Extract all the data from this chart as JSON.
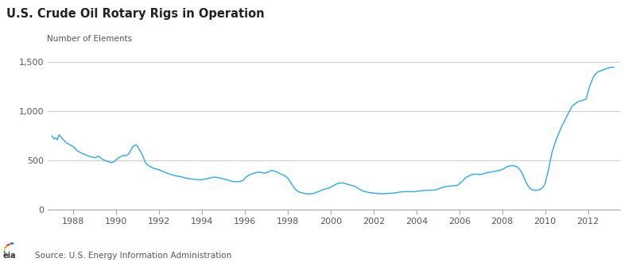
{
  "title": "U.S. Crude Oil Rotary Rigs in Operation",
  "ylabel": "Number of Elements",
  "source_text": "Source: U.S. Energy Information Administration",
  "legend_label": "U.S. Crude Oil Rotary Rigs in Operation",
  "line_color": "#29ABE2",
  "background_color": "#ffffff",
  "grid_color": "#cccccc",
  "ylim": [
    0,
    1600
  ],
  "yticks": [
    0,
    500,
    1000,
    1500
  ],
  "xlim_start": 1986.8,
  "xlim_end": 2013.5,
  "xticks": [
    1988,
    1990,
    1992,
    1994,
    1996,
    1998,
    2000,
    2002,
    2004,
    2006,
    2008,
    2010,
    2012
  ],
  "data": [
    [
      1987.0,
      750
    ],
    [
      1987.08,
      720
    ],
    [
      1987.17,
      730
    ],
    [
      1987.25,
      710
    ],
    [
      1987.33,
      760
    ],
    [
      1987.42,
      740
    ],
    [
      1987.5,
      720
    ],
    [
      1987.58,
      700
    ],
    [
      1987.67,
      680
    ],
    [
      1987.75,
      670
    ],
    [
      1987.83,
      660
    ],
    [
      1987.92,
      650
    ],
    [
      1988.0,
      640
    ],
    [
      1988.08,
      620
    ],
    [
      1988.17,
      600
    ],
    [
      1988.25,
      590
    ],
    [
      1988.33,
      580
    ],
    [
      1988.42,
      570
    ],
    [
      1988.5,
      565
    ],
    [
      1988.58,
      555
    ],
    [
      1988.67,
      548
    ],
    [
      1988.75,
      542
    ],
    [
      1988.83,
      538
    ],
    [
      1988.92,
      532
    ],
    [
      1989.0,
      528
    ],
    [
      1989.08,
      535
    ],
    [
      1989.17,
      545
    ],
    [
      1989.25,
      530
    ],
    [
      1989.33,
      515
    ],
    [
      1989.42,
      505
    ],
    [
      1989.5,
      498
    ],
    [
      1989.58,
      490
    ],
    [
      1989.67,
      485
    ],
    [
      1989.75,
      478
    ],
    [
      1989.83,
      482
    ],
    [
      1989.92,
      490
    ],
    [
      1990.0,
      510
    ],
    [
      1990.08,
      525
    ],
    [
      1990.17,
      535
    ],
    [
      1990.25,
      545
    ],
    [
      1990.33,
      552
    ],
    [
      1990.42,
      548
    ],
    [
      1990.5,
      555
    ],
    [
      1990.58,
      568
    ],
    [
      1990.67,
      600
    ],
    [
      1990.75,
      635
    ],
    [
      1990.83,
      650
    ],
    [
      1990.92,
      658
    ],
    [
      1991.0,
      640
    ],
    [
      1991.08,
      610
    ],
    [
      1991.17,
      575
    ],
    [
      1991.25,
      540
    ],
    [
      1991.33,
      490
    ],
    [
      1991.42,
      462
    ],
    [
      1991.5,
      448
    ],
    [
      1991.58,
      438
    ],
    [
      1991.67,
      428
    ],
    [
      1991.75,
      420
    ],
    [
      1991.83,
      415
    ],
    [
      1991.92,
      410
    ],
    [
      1992.0,
      405
    ],
    [
      1992.08,
      398
    ],
    [
      1992.17,
      390
    ],
    [
      1992.25,
      382
    ],
    [
      1992.33,
      375
    ],
    [
      1992.42,
      368
    ],
    [
      1992.5,
      360
    ],
    [
      1992.58,
      355
    ],
    [
      1992.67,
      350
    ],
    [
      1992.75,
      345
    ],
    [
      1992.83,
      342
    ],
    [
      1992.92,
      338
    ],
    [
      1993.0,
      335
    ],
    [
      1993.08,
      330
    ],
    [
      1993.17,
      325
    ],
    [
      1993.25,
      320
    ],
    [
      1993.33,
      318
    ],
    [
      1993.42,
      315
    ],
    [
      1993.5,
      312
    ],
    [
      1993.58,
      310
    ],
    [
      1993.67,
      308
    ],
    [
      1993.75,
      305
    ],
    [
      1993.83,
      305
    ],
    [
      1993.92,
      302
    ],
    [
      1994.0,
      305
    ],
    [
      1994.08,
      308
    ],
    [
      1994.17,
      312
    ],
    [
      1994.25,
      315
    ],
    [
      1994.33,
      320
    ],
    [
      1994.42,
      325
    ],
    [
      1994.5,
      328
    ],
    [
      1994.58,
      330
    ],
    [
      1994.67,
      328
    ],
    [
      1994.75,
      325
    ],
    [
      1994.83,
      320
    ],
    [
      1994.92,
      318
    ],
    [
      1995.0,
      312
    ],
    [
      1995.08,
      308
    ],
    [
      1995.17,
      302
    ],
    [
      1995.25,
      298
    ],
    [
      1995.33,
      292
    ],
    [
      1995.42,
      288
    ],
    [
      1995.5,
      285
    ],
    [
      1995.58,
      284
    ],
    [
      1995.67,
      284
    ],
    [
      1995.75,
      286
    ],
    [
      1995.83,
      290
    ],
    [
      1995.92,
      298
    ],
    [
      1996.0,
      318
    ],
    [
      1996.08,
      335
    ],
    [
      1996.17,
      348
    ],
    [
      1996.25,
      358
    ],
    [
      1996.33,
      365
    ],
    [
      1996.42,
      370
    ],
    [
      1996.5,
      375
    ],
    [
      1996.58,
      380
    ],
    [
      1996.67,
      382
    ],
    [
      1996.75,
      378
    ],
    [
      1996.83,
      374
    ],
    [
      1996.92,
      370
    ],
    [
      1997.0,
      375
    ],
    [
      1997.08,
      382
    ],
    [
      1997.17,
      392
    ],
    [
      1997.25,
      398
    ],
    [
      1997.33,
      395
    ],
    [
      1997.42,
      390
    ],
    [
      1997.5,
      382
    ],
    [
      1997.58,
      372
    ],
    [
      1997.67,
      362
    ],
    [
      1997.75,
      355
    ],
    [
      1997.83,
      348
    ],
    [
      1997.92,
      335
    ],
    [
      1998.0,
      318
    ],
    [
      1998.08,
      295
    ],
    [
      1998.17,
      265
    ],
    [
      1998.25,
      238
    ],
    [
      1998.33,
      212
    ],
    [
      1998.42,
      195
    ],
    [
      1998.5,
      182
    ],
    [
      1998.58,
      175
    ],
    [
      1998.67,
      170
    ],
    [
      1998.75,
      165
    ],
    [
      1998.83,
      162
    ],
    [
      1998.92,
      160
    ],
    [
      1999.0,
      158
    ],
    [
      1999.08,
      160
    ],
    [
      1999.17,
      163
    ],
    [
      1999.25,
      168
    ],
    [
      1999.33,
      175
    ],
    [
      1999.42,
      182
    ],
    [
      1999.5,
      190
    ],
    [
      1999.58,
      198
    ],
    [
      1999.67,
      205
    ],
    [
      1999.75,
      210
    ],
    [
      1999.83,
      214
    ],
    [
      1999.92,
      218
    ],
    [
      2000.0,
      228
    ],
    [
      2000.08,
      238
    ],
    [
      2000.17,
      248
    ],
    [
      2000.25,
      258
    ],
    [
      2000.33,
      265
    ],
    [
      2000.42,
      270
    ],
    [
      2000.5,
      272
    ],
    [
      2000.58,
      270
    ],
    [
      2000.67,
      265
    ],
    [
      2000.75,
      260
    ],
    [
      2000.83,
      255
    ],
    [
      2000.92,
      250
    ],
    [
      2001.0,
      245
    ],
    [
      2001.08,
      240
    ],
    [
      2001.17,
      232
    ],
    [
      2001.25,
      222
    ],
    [
      2001.33,
      210
    ],
    [
      2001.42,
      198
    ],
    [
      2001.5,
      190
    ],
    [
      2001.58,
      185
    ],
    [
      2001.67,
      180
    ],
    [
      2001.75,
      176
    ],
    [
      2001.83,
      172
    ],
    [
      2001.92,
      170
    ],
    [
      2002.0,
      168
    ],
    [
      2002.08,
      166
    ],
    [
      2002.17,
      164
    ],
    [
      2002.25,
      163
    ],
    [
      2002.33,
      162
    ],
    [
      2002.42,
      161
    ],
    [
      2002.5,
      162
    ],
    [
      2002.58,
      163
    ],
    [
      2002.67,
      164
    ],
    [
      2002.75,
      165
    ],
    [
      2002.83,
      167
    ],
    [
      2002.92,
      168
    ],
    [
      2003.0,
      170
    ],
    [
      2003.08,
      173
    ],
    [
      2003.17,
      176
    ],
    [
      2003.25,
      179
    ],
    [
      2003.33,
      181
    ],
    [
      2003.42,
      182
    ],
    [
      2003.5,
      183
    ],
    [
      2003.58,
      183
    ],
    [
      2003.67,
      182
    ],
    [
      2003.75,
      182
    ],
    [
      2003.83,
      182
    ],
    [
      2003.92,
      183
    ],
    [
      2004.0,
      185
    ],
    [
      2004.08,
      188
    ],
    [
      2004.17,
      190
    ],
    [
      2004.25,
      192
    ],
    [
      2004.33,
      194
    ],
    [
      2004.42,
      195
    ],
    [
      2004.5,
      196
    ],
    [
      2004.58,
      196
    ],
    [
      2004.67,
      197
    ],
    [
      2004.75,
      198
    ],
    [
      2004.83,
      199
    ],
    [
      2004.92,
      201
    ],
    [
      2005.0,
      208
    ],
    [
      2005.08,
      215
    ],
    [
      2005.17,
      222
    ],
    [
      2005.25,
      228
    ],
    [
      2005.33,
      232
    ],
    [
      2005.42,
      236
    ],
    [
      2005.5,
      239
    ],
    [
      2005.58,
      241
    ],
    [
      2005.67,
      242
    ],
    [
      2005.75,
      243
    ],
    [
      2005.83,
      244
    ],
    [
      2005.92,
      248
    ],
    [
      2006.0,
      262
    ],
    [
      2006.08,
      278
    ],
    [
      2006.17,
      295
    ],
    [
      2006.25,
      315
    ],
    [
      2006.33,
      330
    ],
    [
      2006.42,
      340
    ],
    [
      2006.5,
      348
    ],
    [
      2006.58,
      355
    ],
    [
      2006.67,
      358
    ],
    [
      2006.75,
      360
    ],
    [
      2006.83,
      360
    ],
    [
      2006.92,
      358
    ],
    [
      2007.0,
      358
    ],
    [
      2007.08,
      362
    ],
    [
      2007.17,
      368
    ],
    [
      2007.25,
      374
    ],
    [
      2007.33,
      378
    ],
    [
      2007.42,
      380
    ],
    [
      2007.5,
      383
    ],
    [
      2007.58,
      387
    ],
    [
      2007.67,
      391
    ],
    [
      2007.75,
      395
    ],
    [
      2007.83,
      398
    ],
    [
      2007.92,
      400
    ],
    [
      2008.0,
      408
    ],
    [
      2008.08,
      418
    ],
    [
      2008.17,
      428
    ],
    [
      2008.25,
      438
    ],
    [
      2008.33,
      444
    ],
    [
      2008.42,
      448
    ],
    [
      2008.5,
      448
    ],
    [
      2008.58,
      445
    ],
    [
      2008.67,
      438
    ],
    [
      2008.75,
      425
    ],
    [
      2008.83,
      405
    ],
    [
      2008.92,
      375
    ],
    [
      2009.0,
      335
    ],
    [
      2009.08,
      292
    ],
    [
      2009.17,
      255
    ],
    [
      2009.25,
      228
    ],
    [
      2009.33,
      210
    ],
    [
      2009.42,
      200
    ],
    [
      2009.5,
      196
    ],
    [
      2009.58,
      196
    ],
    [
      2009.67,
      198
    ],
    [
      2009.75,
      205
    ],
    [
      2009.83,
      215
    ],
    [
      2009.92,
      232
    ],
    [
      2010.0,
      265
    ],
    [
      2010.08,
      335
    ],
    [
      2010.17,
      415
    ],
    [
      2010.25,
      505
    ],
    [
      2010.33,
      588
    ],
    [
      2010.42,
      648
    ],
    [
      2010.5,
      698
    ],
    [
      2010.58,
      745
    ],
    [
      2010.67,
      790
    ],
    [
      2010.75,
      835
    ],
    [
      2010.83,
      870
    ],
    [
      2010.92,
      905
    ],
    [
      2011.0,
      942
    ],
    [
      2011.08,
      978
    ],
    [
      2011.17,
      1015
    ],
    [
      2011.25,
      1048
    ],
    [
      2011.33,
      1065
    ],
    [
      2011.42,
      1080
    ],
    [
      2011.5,
      1092
    ],
    [
      2011.58,
      1102
    ],
    [
      2011.67,
      1108
    ],
    [
      2011.75,
      1112
    ],
    [
      2011.83,
      1118
    ],
    [
      2011.92,
      1125
    ],
    [
      2012.0,
      1195
    ],
    [
      2012.08,
      1255
    ],
    [
      2012.17,
      1305
    ],
    [
      2012.25,
      1348
    ],
    [
      2012.33,
      1375
    ],
    [
      2012.42,
      1395
    ],
    [
      2012.5,
      1405
    ],
    [
      2012.58,
      1412
    ],
    [
      2012.67,
      1418
    ],
    [
      2012.75,
      1425
    ],
    [
      2012.83,
      1432
    ],
    [
      2012.92,
      1440
    ],
    [
      2013.0,
      1445
    ],
    [
      2013.1,
      1448
    ],
    [
      2013.2,
      1450
    ]
  ]
}
